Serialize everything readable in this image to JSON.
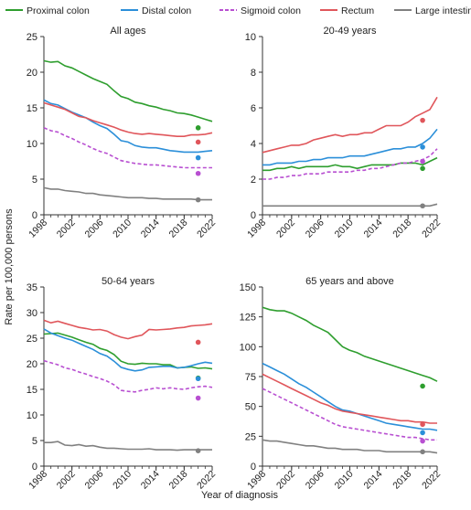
{
  "legend": [
    {
      "name": "Proximal colon",
      "color": "#2e9e2e",
      "dash": false
    },
    {
      "name": "Distal colon",
      "color": "#2b8fd9",
      "dash": false
    },
    {
      "name": "Sigmoid colon",
      "color": "#b84fd1",
      "dash": true
    },
    {
      "name": "Rectum",
      "color": "#e0565b",
      "dash": false
    },
    {
      "name": "Large intestine, NOS",
      "color": "#808080",
      "dash": false
    }
  ],
  "ylabel": "Rate per 100,000 persons",
  "xlabel": "Year of diagnosis",
  "chart_data": [
    {
      "type": "line",
      "title": "All ages",
      "x": [
        1998,
        1999,
        2000,
        2001,
        2002,
        2003,
        2004,
        2005,
        2006,
        2007,
        2008,
        2009,
        2010,
        2011,
        2012,
        2013,
        2014,
        2015,
        2016,
        2017,
        2018,
        2019,
        2020,
        2021,
        2022
      ],
      "xticks": [
        1998,
        2002,
        2006,
        2010,
        2014,
        2018,
        2022
      ],
      "ylim": [
        0,
        25
      ],
      "yticks": [
        0,
        5,
        10,
        15,
        20,
        25
      ],
      "series": [
        {
          "name": "Proximal colon",
          "values": [
            21.6,
            21.4,
            21.5,
            20.9,
            20.6,
            20.1,
            19.6,
            19.1,
            18.7,
            18.3,
            17.4,
            16.6,
            16.3,
            15.8,
            15.6,
            15.3,
            15.1,
            14.8,
            14.6,
            14.3,
            14.2,
            14.0,
            13.7,
            13.4,
            13.1
          ],
          "point": 12.2
        },
        {
          "name": "Distal colon",
          "values": [
            16.1,
            15.6,
            15.4,
            14.9,
            14.4,
            14.0,
            13.6,
            13.0,
            12.5,
            12.1,
            11.3,
            10.4,
            10.2,
            9.7,
            9.5,
            9.4,
            9.4,
            9.2,
            9.0,
            8.9,
            8.8,
            8.8,
            8.8,
            8.9,
            9.0
          ],
          "point": 8.0
        },
        {
          "name": "Sigmoid colon",
          "values": [
            12.2,
            11.8,
            11.6,
            11.1,
            10.7,
            10.2,
            9.8,
            9.3,
            8.9,
            8.6,
            8.1,
            7.6,
            7.4,
            7.2,
            7.1,
            7.0,
            7.0,
            6.9,
            6.8,
            6.7,
            6.6,
            6.6,
            6.6,
            6.6,
            6.6
          ],
          "point": 5.8
        },
        {
          "name": "Rectum",
          "values": [
            15.7,
            15.4,
            15.1,
            14.8,
            14.3,
            13.8,
            13.6,
            13.2,
            12.9,
            12.6,
            12.3,
            11.9,
            11.6,
            11.4,
            11.3,
            11.4,
            11.3,
            11.2,
            11.1,
            11.0,
            11.0,
            11.2,
            11.2,
            11.3,
            11.5
          ],
          "point": 10.2
        },
        {
          "name": "Large intestine, NOS",
          "values": [
            3.8,
            3.6,
            3.6,
            3.4,
            3.3,
            3.2,
            3.0,
            3.0,
            2.8,
            2.7,
            2.6,
            2.5,
            2.4,
            2.4,
            2.4,
            2.3,
            2.3,
            2.2,
            2.2,
            2.2,
            2.2,
            2.2,
            2.1,
            2.1,
            2.1
          ],
          "point": 2.1
        }
      ]
    },
    {
      "type": "line",
      "title": "20-49 years",
      "x": [
        1998,
        1999,
        2000,
        2001,
        2002,
        2003,
        2004,
        2005,
        2006,
        2007,
        2008,
        2009,
        2010,
        2011,
        2012,
        2013,
        2014,
        2015,
        2016,
        2017,
        2018,
        2019,
        2020,
        2021,
        2022
      ],
      "xticks": [
        1998,
        2002,
        2006,
        2010,
        2014,
        2018,
        2022
      ],
      "ylim": [
        0,
        10
      ],
      "yticks": [
        0,
        2,
        4,
        6,
        8,
        10
      ],
      "series": [
        {
          "name": "Proximal colon",
          "values": [
            2.5,
            2.5,
            2.6,
            2.6,
            2.7,
            2.6,
            2.7,
            2.7,
            2.7,
            2.7,
            2.8,
            2.7,
            2.7,
            2.6,
            2.7,
            2.8,
            2.8,
            2.8,
            2.8,
            2.9,
            2.9,
            2.9,
            2.8,
            3.0,
            3.2
          ],
          "point": 2.6
        },
        {
          "name": "Distal colon",
          "values": [
            2.8,
            2.8,
            2.9,
            2.9,
            2.9,
            3.0,
            3.0,
            3.1,
            3.1,
            3.2,
            3.2,
            3.2,
            3.3,
            3.3,
            3.3,
            3.4,
            3.5,
            3.6,
            3.7,
            3.7,
            3.8,
            3.8,
            4.0,
            4.3,
            4.8
          ],
          "point": 3.8
        },
        {
          "name": "Sigmoid colon",
          "values": [
            2.0,
            2.0,
            2.1,
            2.1,
            2.2,
            2.2,
            2.3,
            2.3,
            2.3,
            2.4,
            2.4,
            2.4,
            2.4,
            2.5,
            2.5,
            2.6,
            2.6,
            2.7,
            2.8,
            2.9,
            2.9,
            3.0,
            3.1,
            3.3,
            3.7
          ],
          "point": 3.0
        },
        {
          "name": "Rectum",
          "values": [
            3.5,
            3.6,
            3.7,
            3.8,
            3.9,
            3.9,
            4.0,
            4.2,
            4.3,
            4.4,
            4.5,
            4.4,
            4.5,
            4.5,
            4.6,
            4.6,
            4.8,
            5.0,
            5.0,
            5.0,
            5.2,
            5.5,
            5.7,
            5.9,
            6.6
          ],
          "point": 5.3
        },
        {
          "name": "Large intestine, NOS",
          "values": [
            0.5,
            0.5,
            0.5,
            0.5,
            0.5,
            0.5,
            0.5,
            0.5,
            0.5,
            0.5,
            0.5,
            0.5,
            0.5,
            0.5,
            0.5,
            0.5,
            0.5,
            0.5,
            0.5,
            0.5,
            0.5,
            0.5,
            0.5,
            0.5,
            0.6
          ],
          "point": 0.5
        }
      ]
    },
    {
      "type": "line",
      "title": "50-64 years",
      "x": [
        1998,
        1999,
        2000,
        2001,
        2002,
        2003,
        2004,
        2005,
        2006,
        2007,
        2008,
        2009,
        2010,
        2011,
        2012,
        2013,
        2014,
        2015,
        2016,
        2017,
        2018,
        2019,
        2020,
        2021,
        2022
      ],
      "xticks": [
        1998,
        2002,
        2006,
        2010,
        2014,
        2018,
        2022
      ],
      "ylim": [
        0,
        35
      ],
      "yticks": [
        0,
        5,
        10,
        15,
        20,
        25,
        30,
        35
      ],
      "series": [
        {
          "name": "Proximal colon",
          "values": [
            25.8,
            25.9,
            26.0,
            25.6,
            25.2,
            24.7,
            24.2,
            23.8,
            23.0,
            22.6,
            21.8,
            20.5,
            20.0,
            19.9,
            20.1,
            20.0,
            20.0,
            19.8,
            19.8,
            19.2,
            19.3,
            19.4,
            19.1,
            19.2,
            19.0
          ],
          "point": 17.2
        },
        {
          "name": "Distal colon",
          "values": [
            26.8,
            26.0,
            25.5,
            25.0,
            24.6,
            24.0,
            23.4,
            22.8,
            22.0,
            21.5,
            20.5,
            19.3,
            18.9,
            18.6,
            18.8,
            19.3,
            19.4,
            19.5,
            19.5,
            19.2,
            19.3,
            19.6,
            20.0,
            20.3,
            20.1
          ],
          "point": 17.1
        },
        {
          "name": "Sigmoid colon",
          "values": [
            20.6,
            20.2,
            19.8,
            19.2,
            18.9,
            18.4,
            18.0,
            17.5,
            17.1,
            16.6,
            15.9,
            14.8,
            14.6,
            14.5,
            14.8,
            15.0,
            15.3,
            15.1,
            15.3,
            15.1,
            15.0,
            15.3,
            15.5,
            15.6,
            15.4
          ],
          "point": 13.3
        },
        {
          "name": "Rectum",
          "values": [
            28.5,
            28.0,
            28.3,
            27.9,
            27.5,
            27.1,
            26.9,
            26.6,
            26.7,
            26.4,
            25.7,
            25.2,
            24.9,
            25.3,
            25.6,
            26.7,
            26.6,
            26.7,
            26.8,
            27.0,
            27.1,
            27.4,
            27.5,
            27.6,
            27.8
          ],
          "point": 24.2
        },
        {
          "name": "Large intestine, NOS",
          "values": [
            4.6,
            4.6,
            4.8,
            4.1,
            4.0,
            4.2,
            3.9,
            4.0,
            3.7,
            3.5,
            3.5,
            3.4,
            3.3,
            3.3,
            3.3,
            3.4,
            3.2,
            3.2,
            3.2,
            3.1,
            3.2,
            3.2,
            3.2,
            3.2,
            3.2
          ],
          "point": 3.0
        }
      ]
    },
    {
      "type": "line",
      "title": "65 years and above",
      "x": [
        1998,
        1999,
        2000,
        2001,
        2002,
        2003,
        2004,
        2005,
        2006,
        2007,
        2008,
        2009,
        2010,
        2011,
        2012,
        2013,
        2014,
        2015,
        2016,
        2017,
        2018,
        2019,
        2020,
        2021,
        2022
      ],
      "xticks": [
        1998,
        2002,
        2006,
        2010,
        2014,
        2018,
        2022
      ],
      "ylim": [
        0,
        150
      ],
      "yticks": [
        0,
        25,
        50,
        75,
        100,
        125,
        150
      ],
      "series": [
        {
          "name": "Proximal colon",
          "values": [
            133,
            131,
            130,
            130,
            128,
            125,
            122,
            118,
            115,
            112,
            106,
            100,
            97,
            95,
            92,
            90,
            88,
            86,
            84,
            82,
            80,
            78,
            76,
            74,
            71
          ],
          "point": 67
        },
        {
          "name": "Distal colon",
          "values": [
            86,
            83,
            80,
            77,
            73,
            69,
            66,
            62,
            58,
            54,
            50,
            47,
            46,
            44,
            42,
            40,
            38,
            36,
            35,
            34,
            33,
            32,
            31,
            31,
            30
          ],
          "point": 28
        },
        {
          "name": "Sigmoid colon",
          "values": [
            65,
            62,
            59,
            56,
            53,
            50,
            47,
            44,
            41,
            38,
            35,
            33,
            32,
            31,
            30,
            29,
            28,
            27,
            26,
            25,
            24,
            24,
            23,
            22,
            22
          ],
          "point": 21
        },
        {
          "name": "Rectum",
          "values": [
            77,
            74,
            71,
            68,
            65,
            62,
            59,
            56,
            53,
            51,
            48,
            46,
            45,
            44,
            43,
            42,
            41,
            40,
            39,
            38,
            38,
            37,
            37,
            36,
            36
          ],
          "point": 35
        },
        {
          "name": "Large intestine, NOS",
          "values": [
            22,
            21,
            21,
            20,
            19,
            18,
            17,
            17,
            16,
            15,
            15,
            14,
            14,
            14,
            13,
            13,
            13,
            12,
            12,
            12,
            12,
            12,
            12,
            12,
            11
          ],
          "point": 12
        }
      ]
    }
  ]
}
